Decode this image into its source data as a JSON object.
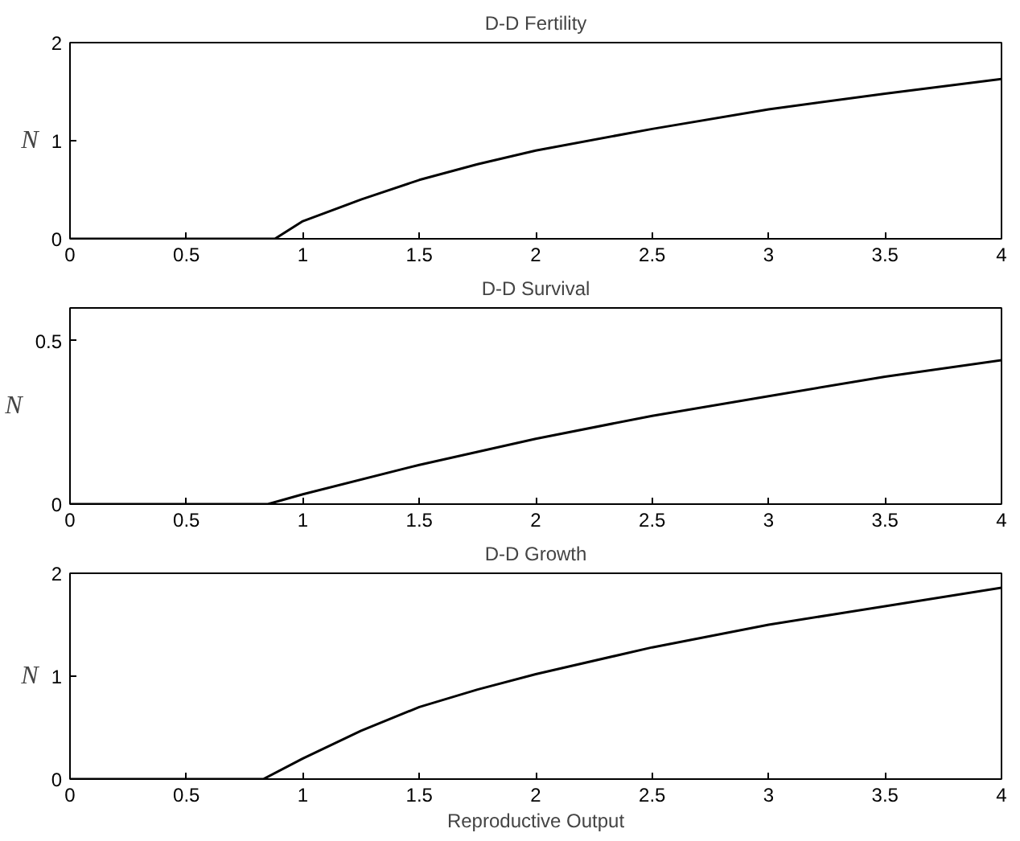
{
  "chart_data": [
    {
      "type": "line",
      "title": "D-D Fertility",
      "ylabel": "N",
      "x": [
        0,
        0.88,
        1,
        1.25,
        1.5,
        1.75,
        2,
        2.5,
        3,
        3.5,
        4
      ],
      "series": [
        {
          "color": "#000000",
          "values": [
            0,
            0,
            0.18,
            0.4,
            0.6,
            0.76,
            0.9,
            1.12,
            1.32,
            1.48,
            1.63
          ]
        }
      ],
      "xlim": [
        0,
        4
      ],
      "xticks": [
        0,
        0.5,
        1,
        1.5,
        2,
        2.5,
        3,
        3.5,
        4
      ],
      "ylim": [
        0,
        2
      ],
      "yticks": [
        0,
        1,
        2
      ]
    },
    {
      "type": "line",
      "title": "D-D Survival",
      "ylabel": "N",
      "x": [
        0,
        0.85,
        1,
        1.5,
        2,
        2.5,
        3,
        3.5,
        4
      ],
      "series": [
        {
          "color": "#000000",
          "values": [
            0,
            0,
            0.03,
            0.12,
            0.2,
            0.27,
            0.33,
            0.39,
            0.44
          ]
        }
      ],
      "xlim": [
        0,
        4
      ],
      "xticks": [
        0,
        0.5,
        1,
        1.5,
        2,
        2.5,
        3,
        3.5,
        4
      ],
      "ylim": [
        0,
        0.6
      ],
      "yticks": [
        0,
        0.5
      ]
    },
    {
      "type": "line",
      "title": "D-D Growth",
      "ylabel": "N",
      "xlabel": "Reproductive Output",
      "x": [
        0,
        0.83,
        1,
        1.25,
        1.5,
        1.75,
        2,
        2.5,
        3,
        3.5,
        4
      ],
      "series": [
        {
          "color": "#000000",
          "values": [
            0,
            0,
            0.2,
            0.47,
            0.7,
            0.87,
            1.02,
            1.28,
            1.5,
            1.68,
            1.86
          ]
        }
      ],
      "xlim": [
        0,
        4
      ],
      "xticks": [
        0,
        0.5,
        1,
        1.5,
        2,
        2.5,
        3,
        3.5,
        4
      ],
      "ylim": [
        0,
        2
      ],
      "yticks": [
        0,
        1,
        2
      ]
    }
  ]
}
